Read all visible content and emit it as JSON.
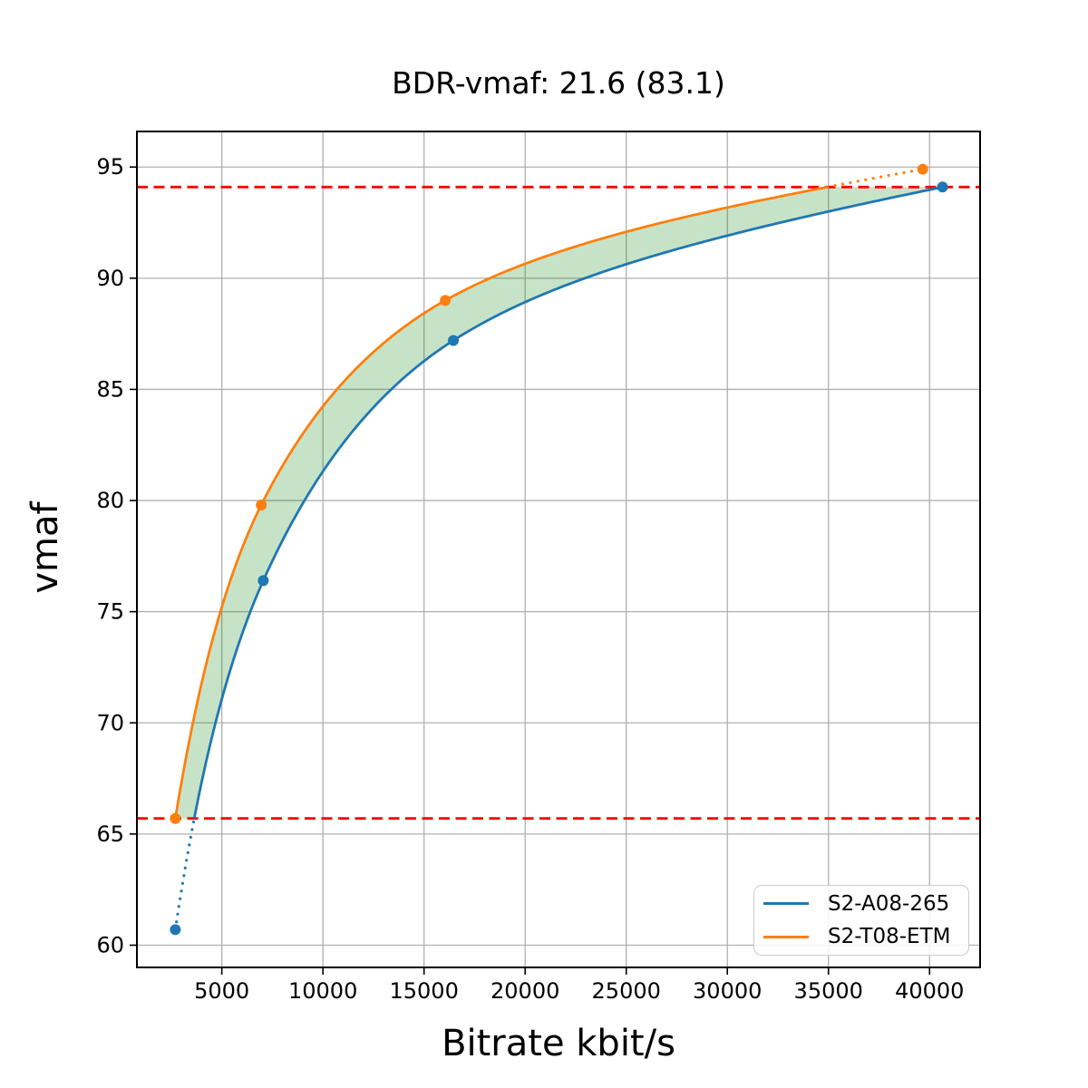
{
  "title": "BDR-vmaf: 21.6 (83.1)",
  "chart_data": {
    "type": "line",
    "title": "BDR-vmaf: 21.6 (83.1)",
    "xlabel": "Bitrate kbit/s",
    "ylabel": "vmaf",
    "xlim": [
      800,
      42500
    ],
    "ylim": [
      59.0,
      96.6
    ],
    "x_ticks": [
      5000,
      10000,
      15000,
      20000,
      25000,
      30000,
      35000,
      40000
    ],
    "y_ticks": [
      60,
      65,
      70,
      75,
      80,
      85,
      90,
      95
    ],
    "grid": true,
    "grid_color": "#b0b0b0",
    "legend_position": "lower right",
    "series": [
      {
        "name": "S2-A08-265",
        "color": "#1f77b4",
        "points": [
          [
            2700,
            60.7
          ],
          [
            7050,
            76.4
          ],
          [
            16450,
            87.2
          ],
          [
            40640,
            94.1
          ]
        ]
      },
      {
        "name": "S2-T08-ETM",
        "color": "#ff7f0e",
        "points": [
          [
            2700,
            65.7
          ],
          [
            6950,
            79.8
          ],
          [
            16050,
            89.0
          ],
          [
            39660,
            94.9
          ]
        ]
      }
    ],
    "overlap_interval": {
      "low_vmaf": 65.7,
      "high_vmaf": 94.1,
      "line_color": "#ff0000",
      "line_style": "dashed"
    },
    "shaded_region_color": "rgba(0,128,0,0.22)",
    "bd_rate_percent": 21.6,
    "mean_vmaf": 83.1
  }
}
